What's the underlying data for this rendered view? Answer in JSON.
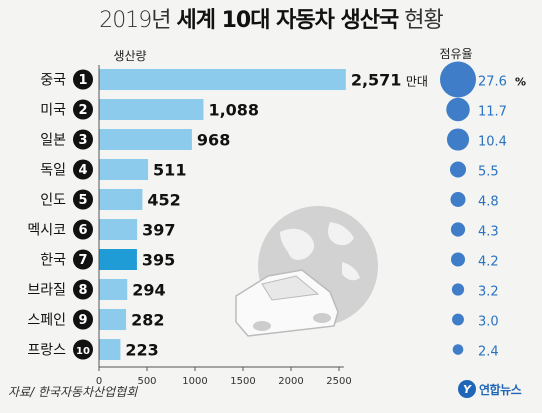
{
  "title_light_year": "2019년",
  "title_bold": "세계 10대 자동차 생산국",
  "title_light_end": "현황",
  "source": "자료/ 한국자동차산업협회",
  "logo_text": "연합뉴스",
  "logo_mark": "Y",
  "colors": {
    "bar": "#8ccbec",
    "bar_highlight": "#1f9bd6",
    "bubble": "#3f7dc8",
    "bubble_text": "#2a72c0",
    "rank_circle": "#111111",
    "globe": "#c9c9c9"
  },
  "chart_data": {
    "type": "bar",
    "orientation": "horizontal",
    "title": "2019년 세계 10대 자동차 생산국 현황",
    "ylabel": "생산량",
    "categories": [
      "중국",
      "미국",
      "일본",
      "독일",
      "인도",
      "멕시코",
      "한국",
      "브라질",
      "스페인",
      "프랑스"
    ],
    "ranks": [
      "1",
      "2",
      "3",
      "4",
      "5",
      "6",
      "7",
      "8",
      "9",
      "10"
    ],
    "values": [
      2571,
      1088,
      968,
      511,
      452,
      397,
      395,
      294,
      282,
      223
    ],
    "value_labels": [
      "2,571",
      "1,088",
      "968",
      "511",
      "452",
      "397",
      "395",
      "294",
      "282",
      "223"
    ],
    "value_unit": "만대",
    "highlight_index": 6,
    "xlim": [
      0,
      2600
    ],
    "xticks": [
      0,
      500,
      1000,
      1500,
      2000,
      2500
    ],
    "share_title": "점유율",
    "share_values": [
      27.6,
      11.7,
      10.4,
      5.5,
      4.8,
      4.3,
      4.2,
      3.2,
      3.0,
      2.4
    ],
    "share_labels": [
      "27.6",
      "11.7",
      "10.4",
      "5.5",
      "4.8",
      "4.3",
      "4.2",
      "3.2",
      "3.0",
      "2.4"
    ],
    "share_unit": "%"
  }
}
